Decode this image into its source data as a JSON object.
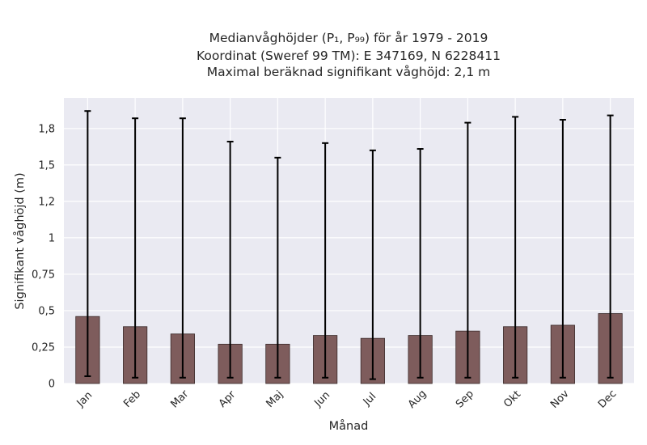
{
  "chart_data": {
    "type": "bar",
    "title_lines": [
      "Medianvåghöjder (P₁, P₉₉) för år 1979 - 2019",
      "Koordinat (Sweref 99 TM): E 347169, N 6228411",
      "Maximal beräknad signifikant våghöjd: 2,1 m"
    ],
    "xlabel": "Månad",
    "ylabel": "Signifikant våghöjd (m)",
    "categories": [
      "Jan",
      "Feb",
      "Mar",
      "Apr",
      "Maj",
      "Jun",
      "Jul",
      "Aug",
      "Sep",
      "Okt",
      "Nov",
      "Dec"
    ],
    "values": [
      0.46,
      0.39,
      0.34,
      0.27,
      0.27,
      0.33,
      0.31,
      0.33,
      0.36,
      0.39,
      0.4,
      0.48
    ],
    "error_low": [
      0.05,
      0.04,
      0.04,
      0.04,
      0.04,
      0.04,
      0.03,
      0.04,
      0.04,
      0.04,
      0.04,
      0.04
    ],
    "error_high": [
      1.87,
      1.82,
      1.82,
      1.66,
      1.55,
      1.65,
      1.6,
      1.61,
      1.79,
      1.83,
      1.81,
      1.84
    ],
    "yticks": [
      0,
      0.25,
      0.5,
      0.75,
      1,
      1.25,
      1.5,
      1.75
    ],
    "ytick_labels": [
      "0",
      "0,25",
      "0,5",
      "0,75",
      "1",
      "1,2",
      "1,5",
      "1,8"
    ],
    "ylim": [
      0,
      1.96
    ],
    "grid": true,
    "colors": {
      "bar": "#7e5c5c",
      "bar_edge": "#3a2a2a",
      "error_bar": "#000000",
      "plot_background": "#eaeaf2",
      "grid": "#ffffff"
    }
  }
}
